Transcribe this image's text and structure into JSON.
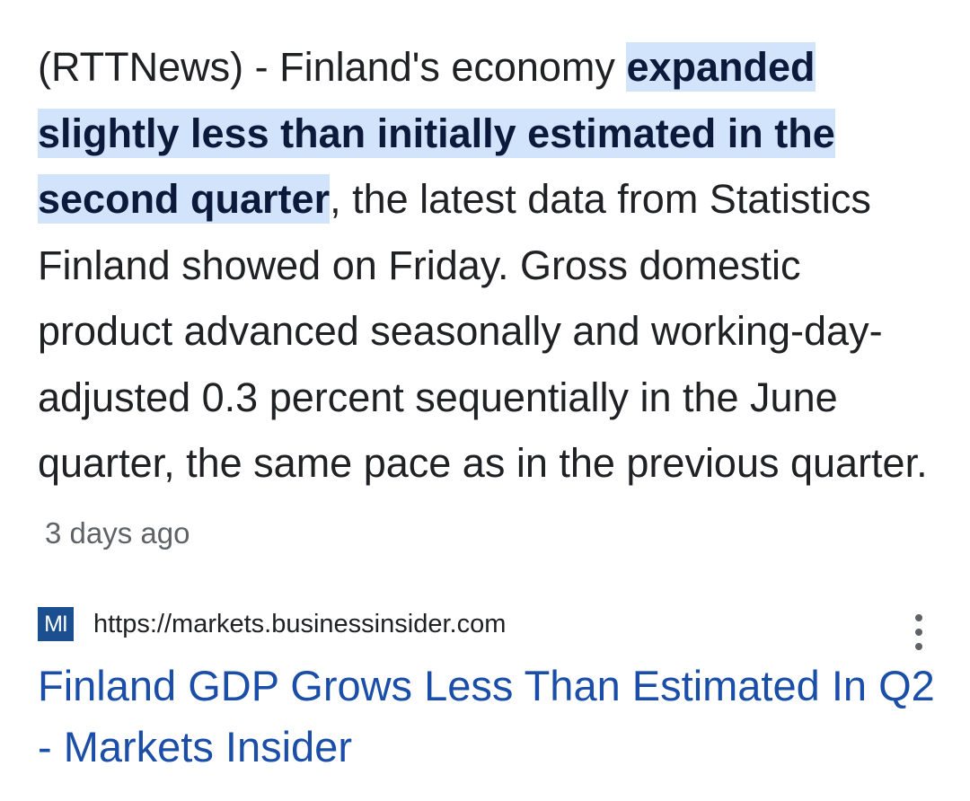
{
  "snippet": {
    "before": "(RTTNews) - Finland's economy ",
    "highlight": "expanded slightly less than initially estimated in the second quarter",
    "after": ", the latest data from Statistics Finland showed on Friday. Gross domestic product advanced seasonally and working-day-adjusted 0.3 percent sequentially in the June quarter, the same pace as in the previous quarter.",
    "time_ago": "3 days ago"
  },
  "result": {
    "favicon_text": "MI",
    "url": "https://markets.businessinsider.com",
    "title": "Finland GDP Grows Less Than Estimated In Q2 - Markets Insider",
    "menu_icon": "more-vert-icon"
  },
  "colors": {
    "highlight_bg": "#d2e3fc",
    "link": "#1a4ea8",
    "favicon_bg": "#1b4f8f",
    "text": "#202124",
    "secondary": "#5f6368"
  }
}
